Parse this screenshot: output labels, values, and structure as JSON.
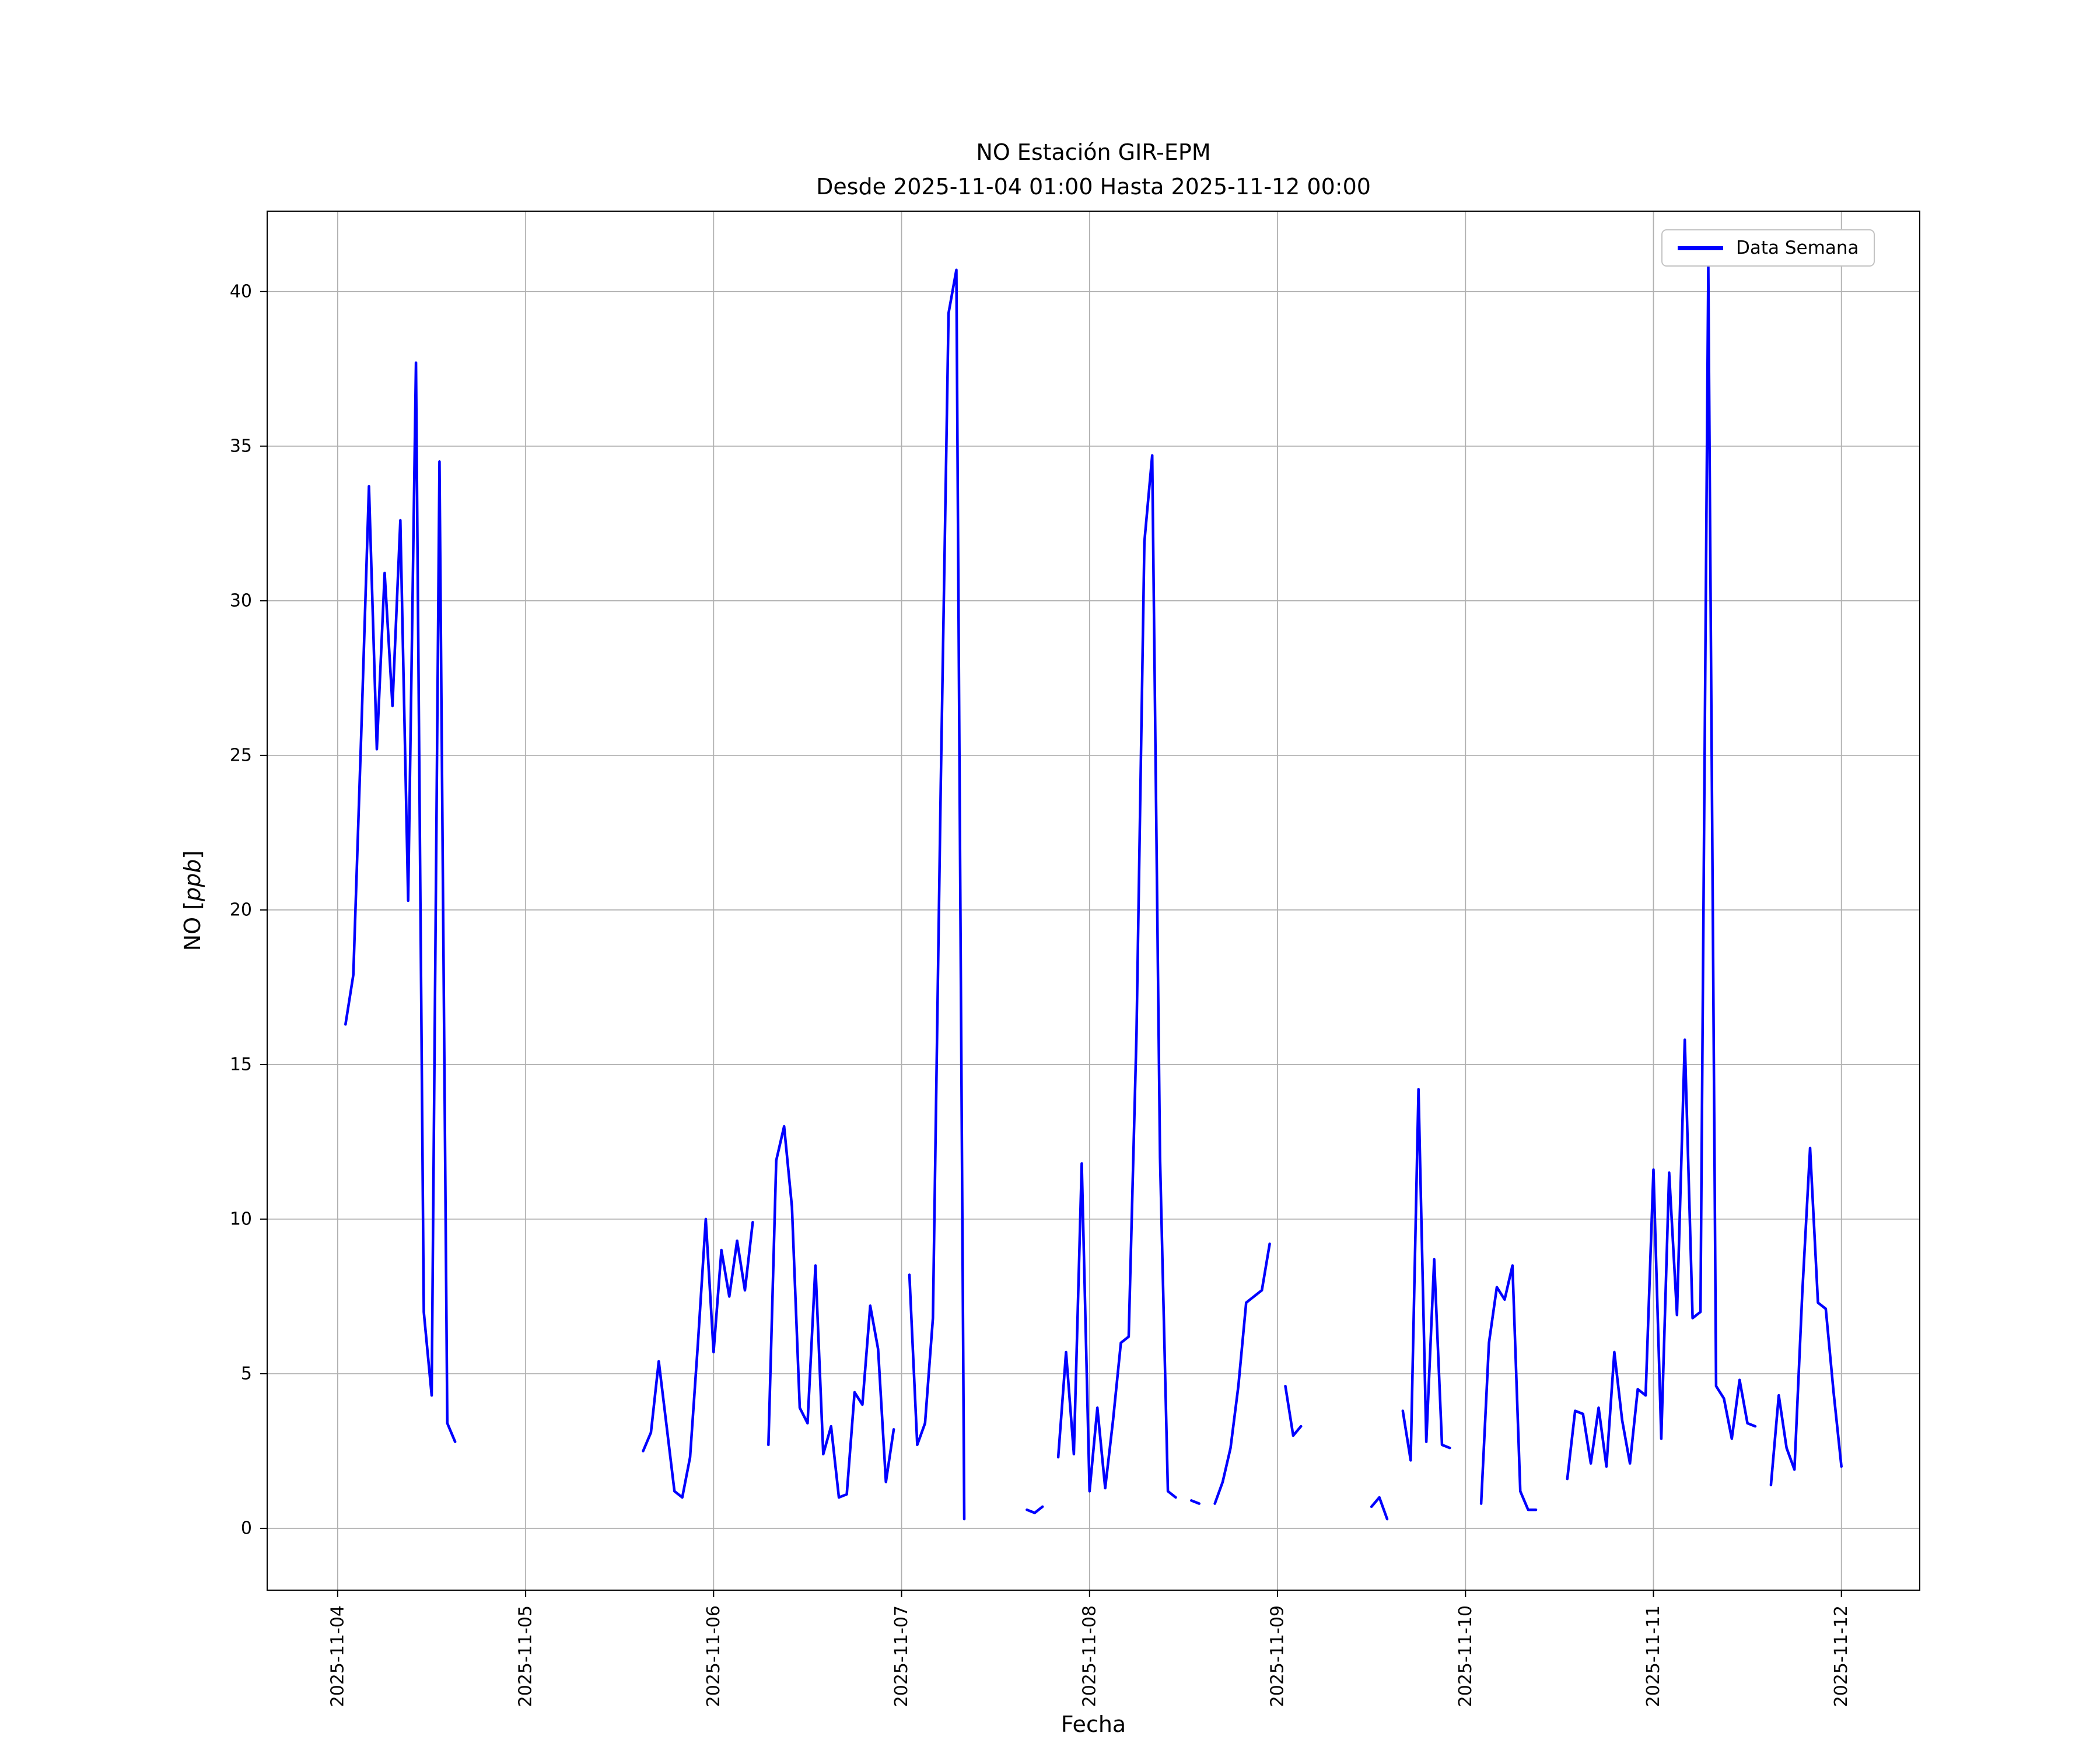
{
  "figure": {
    "background": "#ffffff"
  },
  "chart_data": {
    "type": "line",
    "title_line1": "NO Estación GIR-EPM",
    "title_line2": "Desde 2025-11-04 01:00 Hasta 2025-11-12 00:00",
    "xlabel": "Fecha",
    "ylabel": "NO [ppb]",
    "ylabel_parts": {
      "prefix": "NO [",
      "italic": "ppb",
      "suffix": "]"
    },
    "legend": {
      "position": "upper right",
      "entries": [
        "Data Semana"
      ]
    },
    "grid": true,
    "grid_color": "#b0b0b0",
    "line_color": "#0000ff",
    "x_unit": "hours since 2025-11-04 00:00",
    "xlim": [
      -9,
      202
    ],
    "ylim": [
      -2,
      42.6
    ],
    "xticks": [
      {
        "t": 0,
        "label": "2025-11-04"
      },
      {
        "t": 24,
        "label": "2025-11-05"
      },
      {
        "t": 48,
        "label": "2025-11-06"
      },
      {
        "t": 72,
        "label": "2025-11-07"
      },
      {
        "t": 96,
        "label": "2025-11-08"
      },
      {
        "t": 120,
        "label": "2025-11-09"
      },
      {
        "t": 144,
        "label": "2025-11-10"
      },
      {
        "t": 168,
        "label": "2025-11-11"
      },
      {
        "t": 192,
        "label": "2025-11-12"
      }
    ],
    "yticks": [
      0,
      5,
      10,
      15,
      20,
      25,
      30,
      35,
      40
    ],
    "series": [
      {
        "name": "Data Semana",
        "color": "#0000ff",
        "segments": [
          [
            [
              1,
              16.3
            ],
            [
              2,
              17.9
            ],
            [
              3,
              25.6
            ],
            [
              4,
              33.7
            ],
            [
              5,
              25.2
            ],
            [
              6,
              30.9
            ],
            [
              7,
              26.6
            ],
            [
              8,
              32.6
            ],
            [
              9,
              20.3
            ],
            [
              10,
              37.7
            ],
            [
              11,
              7.0
            ],
            [
              12,
              4.3
            ],
            [
              13,
              34.5
            ],
            [
              14,
              3.4
            ],
            [
              15,
              2.8
            ]
          ],
          [
            [
              39,
              2.5
            ],
            [
              40,
              3.1
            ],
            [
              41,
              5.4
            ],
            [
              42,
              3.3
            ],
            [
              43,
              1.2
            ],
            [
              44,
              1.0
            ],
            [
              45,
              2.3
            ],
            [
              46,
              6.0
            ],
            [
              47,
              10.0
            ],
            [
              48,
              5.7
            ],
            [
              49,
              9.0
            ],
            [
              50,
              7.5
            ],
            [
              51,
              9.3
            ],
            [
              52,
              7.7
            ],
            [
              53,
              9.9
            ]
          ],
          [
            [
              55,
              2.7
            ],
            [
              56,
              11.9
            ],
            [
              57,
              13.0
            ],
            [
              58,
              10.4
            ],
            [
              59,
              3.9
            ],
            [
              60,
              3.4
            ],
            [
              61,
              8.5
            ],
            [
              62,
              2.4
            ],
            [
              63,
              3.3
            ],
            [
              64,
              1.0
            ],
            [
              65,
              1.1
            ],
            [
              66,
              4.4
            ],
            [
              67,
              4.0
            ],
            [
              68,
              7.2
            ],
            [
              69,
              5.8
            ],
            [
              70,
              1.5
            ],
            [
              71,
              3.2
            ]
          ],
          [
            [
              73,
              8.2
            ],
            [
              74,
              2.7
            ],
            [
              75,
              3.4
            ],
            [
              76,
              6.8
            ],
            [
              77,
              24.0
            ],
            [
              78,
              39.3
            ],
            [
              79,
              40.7
            ],
            [
              80,
              0.3
            ]
          ],
          [
            [
              88,
              0.6
            ],
            [
              89,
              0.5
            ],
            [
              90,
              0.7
            ]
          ],
          [
            [
              92,
              2.3
            ],
            [
              93,
              5.7
            ],
            [
              94,
              2.4
            ],
            [
              95,
              11.8
            ],
            [
              96,
              1.2
            ],
            [
              97,
              3.9
            ],
            [
              98,
              1.3
            ],
            [
              99,
              3.5
            ],
            [
              100,
              6.0
            ],
            [
              101,
              6.2
            ],
            [
              102,
              16.0
            ],
            [
              103,
              31.9
            ],
            [
              104,
              34.7
            ],
            [
              105,
              12.0
            ],
            [
              106,
              1.2
            ],
            [
              107,
              1.0
            ]
          ],
          [
            [
              109,
              0.9
            ],
            [
              110,
              0.8
            ]
          ],
          [
            [
              112,
              0.8
            ],
            [
              113,
              1.5
            ],
            [
              114,
              2.6
            ],
            [
              115,
              4.6
            ],
            [
              116,
              7.3
            ],
            [
              117,
              7.5
            ],
            [
              118,
              7.7
            ],
            [
              119,
              9.2
            ]
          ],
          [
            [
              121,
              4.6
            ],
            [
              122,
              3.0
            ],
            [
              123,
              3.3
            ]
          ],
          [
            [
              132,
              0.7
            ],
            [
              133,
              1.0
            ],
            [
              134,
              0.3
            ]
          ],
          [
            [
              136,
              3.8
            ],
            [
              137,
              2.2
            ],
            [
              138,
              14.2
            ],
            [
              139,
              2.8
            ],
            [
              140,
              8.7
            ],
            [
              141,
              2.7
            ],
            [
              142,
              2.6
            ]
          ],
          [
            [
              146,
              0.8
            ],
            [
              147,
              6.0
            ],
            [
              148,
              7.8
            ],
            [
              149,
              7.4
            ],
            [
              150,
              8.5
            ],
            [
              151,
              1.2
            ],
            [
              152,
              0.6
            ],
            [
              153,
              0.6
            ]
          ],
          [
            [
              157,
              1.6
            ],
            [
              158,
              3.8
            ],
            [
              159,
              3.7
            ],
            [
              160,
              2.1
            ],
            [
              161,
              3.9
            ],
            [
              162,
              2.0
            ],
            [
              163,
              5.7
            ],
            [
              164,
              3.5
            ],
            [
              165,
              2.1
            ],
            [
              166,
              4.5
            ],
            [
              167,
              4.3
            ],
            [
              168,
              11.6
            ],
            [
              169,
              2.9
            ],
            [
              170,
              11.5
            ],
            [
              171,
              6.9
            ],
            [
              172,
              15.8
            ],
            [
              173,
              6.8
            ],
            [
              174,
              7.0
            ],
            [
              175,
              40.8
            ],
            [
              176,
              4.6
            ],
            [
              177,
              4.2
            ],
            [
              178,
              2.9
            ],
            [
              179,
              4.8
            ],
            [
              180,
              3.4
            ],
            [
              181,
              3.3
            ]
          ],
          [
            [
              183,
              1.4
            ],
            [
              184,
              4.3
            ],
            [
              185,
              2.6
            ],
            [
              186,
              1.9
            ],
            [
              187,
              7.6
            ],
            [
              188,
              12.3
            ],
            [
              189,
              7.3
            ],
            [
              190,
              7.1
            ],
            [
              191,
              4.4
            ],
            [
              192,
              2.0
            ]
          ]
        ]
      }
    ]
  }
}
